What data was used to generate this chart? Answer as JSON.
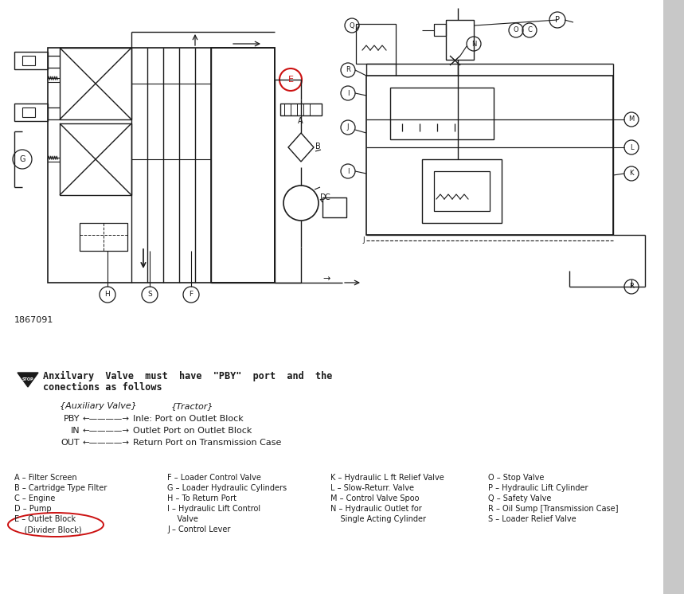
{
  "bg": "#ffffff",
  "gray_strip_color": "#c8c8c8",
  "black": "#1a1a1a",
  "red": "#cc1111",
  "diagram_number": "1867091",
  "warn_line1": "Anxilvary  Valve  must  have  \"PBY\"  port  and  the",
  "warn_line2": "conections as follows",
  "aux_header": "{Auxiliary Valve}",
  "tractor_header": "{Tractor}",
  "conn_labels": [
    "PBY",
    "IN",
    "OUT"
  ],
  "conn_descs": [
    "Inle: Port on Outlet Block",
    "Outlet Port on Outlet Block",
    "Return Port on Transmission Case"
  ],
  "leg1": [
    "A – Filter Screen",
    "B – Cartridge Type Filter",
    "C – Engine",
    "D – Pump",
    "E – Outlet Block",
    "    (Divider Block)"
  ],
  "leg2": [
    "F – Loader Control Valve",
    "G – Loader Hydraulic Cylinders",
    "H – To Return Port",
    "I – Hydraulic Lift Control",
    "    Valve",
    "J – Control Lever"
  ],
  "leg3": [
    "K – Hydraulic L ft Relief Valve",
    "L – Slow-Returr. Valve",
    "M – Control Valve Spoo",
    "N – Hydraulic Outlet for",
    "    Single Acting Cylinder"
  ],
  "leg4": [
    "O – Stop Valve",
    "P – Hydraulic Lift Cylinder",
    "Q – Safety Valve",
    "R – Oil Sump [Transmission Case]",
    "S – Loader Relief Valve"
  ]
}
